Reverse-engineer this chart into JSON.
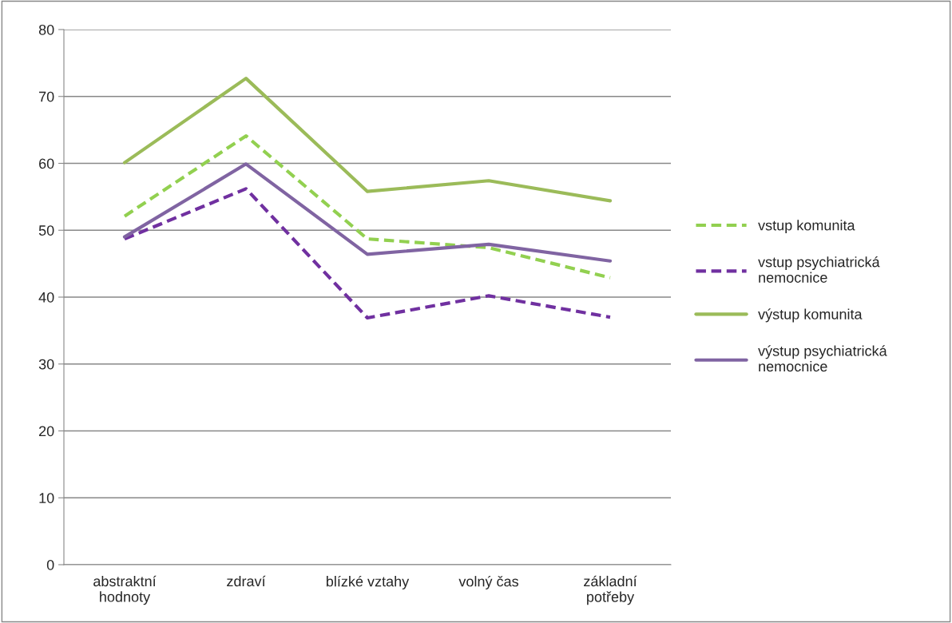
{
  "chart_data": {
    "type": "line",
    "categories": [
      "abstraktní\nhodnoty",
      "zdraví",
      "blízké vztahy",
      "volný čas",
      "základní\npotřeby"
    ],
    "series": [
      {
        "name": "vstup komunita",
        "color": "#92d050",
        "line_style": "dashed",
        "values": [
          52.1,
          64.1,
          48.7,
          47.4,
          42.9
        ]
      },
      {
        "name": "vstup psychiatrická\nnemocnice",
        "color": "#7030a0",
        "line_style": "dashed",
        "values": [
          48.7,
          56.2,
          36.9,
          40.2,
          37.0
        ]
      },
      {
        "name": "výstup komunita",
        "color": "#9bbb59",
        "line_style": "solid",
        "values": [
          60.1,
          72.7,
          55.8,
          57.4,
          54.4
        ]
      },
      {
        "name": "výstup psychiatrická\nnemocnice",
        "color": "#8064a2",
        "line_style": "solid",
        "values": [
          49.0,
          59.9,
          46.4,
          47.9,
          45.4
        ]
      }
    ],
    "ylim": [
      0,
      80
    ],
    "yticks": [
      0,
      10,
      20,
      30,
      40,
      50,
      60,
      70,
      80
    ],
    "grid": "y",
    "legend": "right",
    "marker": "none"
  }
}
